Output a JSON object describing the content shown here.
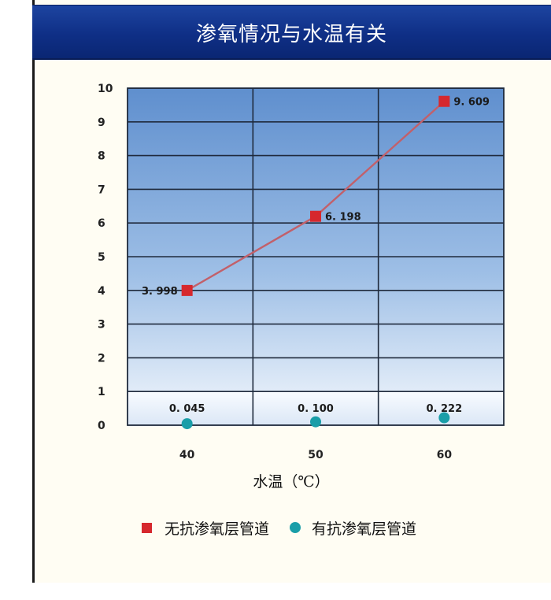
{
  "title": "渗氧情况与水温有关",
  "chart_data": {
    "type": "line",
    "title": "渗氧情况与水温有关",
    "xlabel": "水温（℃）",
    "ylabel": "",
    "categories": [
      "40",
      "50",
      "60"
    ],
    "yticks": [
      "0",
      "1",
      "2",
      "3",
      "4",
      "5",
      "6",
      "7",
      "8",
      "9",
      "10"
    ],
    "ylim": [
      0,
      10
    ],
    "grid": true,
    "legend_position": "bottom",
    "series": [
      {
        "name": "无抗渗氧层管道",
        "values": [
          3.998,
          6.198,
          9.609
        ],
        "labels": [
          "3. 998",
          "6. 198",
          "9. 609"
        ],
        "marker": "square",
        "color": "#d6282d"
      },
      {
        "name": "有抗渗氧层管道",
        "values": [
          0.045,
          0.1,
          0.222
        ],
        "labels": [
          "0. 045",
          "0. 100",
          "0. 222"
        ],
        "marker": "circle",
        "color": "#1a9ea8"
      }
    ]
  }
}
